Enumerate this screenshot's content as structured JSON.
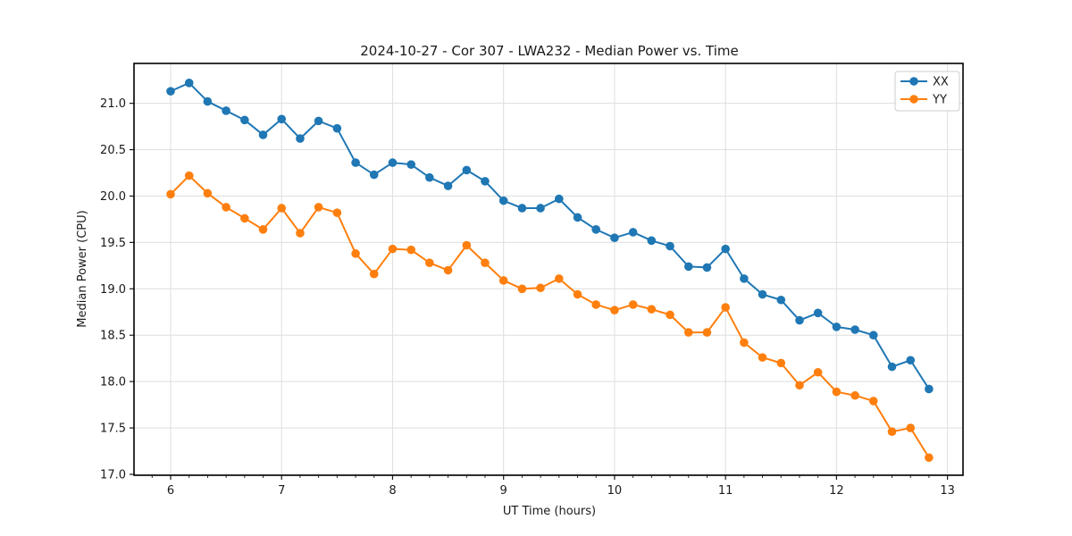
{
  "chart_data": {
    "type": "line",
    "title": "2024-10-27 - Cor 307 - LWA232 - Median Power vs. Time",
    "xlabel": "UT Time (hours)",
    "ylabel": "Median Power (CPU)",
    "xlim": [
      5.67,
      13.14
    ],
    "ylim": [
      16.99,
      21.43
    ],
    "xticks": [
      6,
      7,
      8,
      9,
      10,
      11,
      12,
      13
    ],
    "yticks": [
      17.0,
      17.5,
      18.0,
      18.5,
      19.0,
      19.5,
      20.0,
      20.5,
      21.0
    ],
    "x_minor_tick_step_hours": 0.1667,
    "grid": true,
    "grid_color": "#dedede",
    "legend_position": "upper right",
    "marker": "o",
    "x": [
      6,
      6.167,
      6.333,
      6.5,
      6.667,
      6.833,
      7,
      7.167,
      7.333,
      7.5,
      7.667,
      7.833,
      8,
      8.167,
      8.333,
      8.5,
      8.667,
      8.833,
      9,
      9.167,
      9.333,
      9.5,
      9.667,
      9.833,
      10,
      10.167,
      10.333,
      10.5,
      10.667,
      10.833,
      11,
      11.167,
      11.333,
      11.5,
      11.667,
      11.833,
      12,
      12.167,
      12.333,
      12.5,
      12.667,
      12.833
    ],
    "series": [
      {
        "name": "XX",
        "color": "#1f77b4",
        "values": [
          21.13,
          21.22,
          21.02,
          20.92,
          20.82,
          20.66,
          20.83,
          20.62,
          20.81,
          20.73,
          20.36,
          20.23,
          20.36,
          20.34,
          20.2,
          20.11,
          20.28,
          20.16,
          19.95,
          19.87,
          19.87,
          19.97,
          19.77,
          19.64,
          19.55,
          19.61,
          19.52,
          19.46,
          19.24,
          19.23,
          19.43,
          19.11,
          18.94,
          18.88,
          18.66,
          18.74,
          18.59,
          18.56,
          18.5,
          18.16,
          18.23,
          17.92
        ]
      },
      {
        "name": "YY",
        "color": "#ff7f0e",
        "values": [
          20.02,
          20.22,
          20.03,
          19.88,
          19.76,
          19.64,
          19.87,
          19.6,
          19.88,
          19.82,
          19.38,
          19.16,
          19.43,
          19.42,
          19.28,
          19.2,
          19.47,
          19.28,
          19.09,
          19.0,
          19.01,
          19.11,
          18.94,
          18.83,
          18.77,
          18.83,
          18.78,
          18.72,
          18.53,
          18.53,
          18.8,
          18.42,
          18.26,
          18.2,
          17.96,
          18.1,
          17.89,
          17.85,
          17.79,
          17.46,
          17.5,
          17.18
        ]
      }
    ]
  }
}
